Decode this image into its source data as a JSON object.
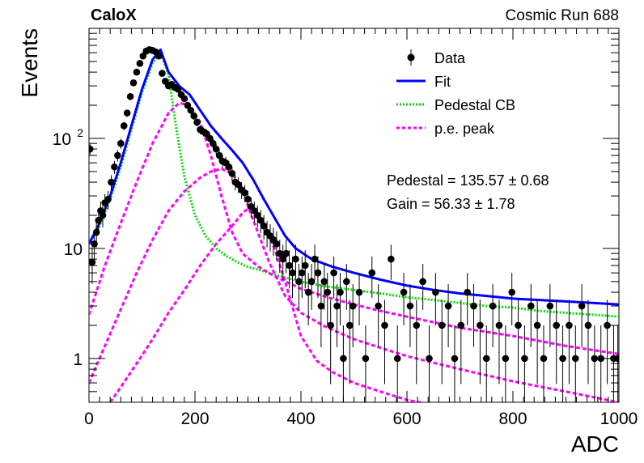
{
  "header": {
    "title_left": "CaloX",
    "title_right": "Cosmic Run 688"
  },
  "chart_data": {
    "type": "scatter",
    "xlabel": "ADC",
    "ylabel": "Events",
    "xlim": [
      0,
      1000
    ],
    "ylim": [
      0.4,
      1000
    ],
    "y_scale": "log",
    "x_ticks": [
      0,
      200,
      400,
      600,
      800,
      1000
    ],
    "x_tick_labels": [
      "0",
      "200",
      "400",
      "600",
      "800",
      "1000"
    ],
    "y_ticks": [
      1,
      10,
      100
    ],
    "y_tick_labels": [
      "1",
      "10",
      "10^2"
    ],
    "legend": {
      "position": "top-right",
      "entries": [
        {
          "label": "Data",
          "style": "marker",
          "color": "#000000"
        },
        {
          "label": "Fit",
          "style": "line",
          "color": "#0000ff"
        },
        {
          "label": "Pedestal CB",
          "style": "dotted",
          "color": "#00dd00"
        },
        {
          "label": "p.e. peak",
          "style": "dashed",
          "color": "#ff00ff"
        }
      ]
    },
    "annotations": [
      {
        "name": "Pedestal",
        "value": "135.57",
        "error": "0.68",
        "text": "Pedestal = 135.57 ± 0.68"
      },
      {
        "name": "Gain",
        "value": "56.33",
        "error": "1.78",
        "text": "Gain = 56.33 ± 1.78"
      }
    ],
    "series": [
      {
        "name": "Data",
        "kind": "points_with_errors",
        "color": "#000000",
        "x": [
          2,
          6,
          10,
          14,
          18,
          22,
          26,
          30,
          36,
          42,
          48,
          54,
          60,
          66,
          72,
          78,
          84,
          90,
          96,
          102,
          108,
          114,
          120,
          126,
          132,
          138,
          144,
          150,
          156,
          162,
          168,
          174,
          180,
          186,
          192,
          198,
          204,
          210,
          216,
          222,
          228,
          234,
          240,
          246,
          252,
          258,
          264,
          270,
          276,
          282,
          288,
          294,
          300,
          306,
          312,
          318,
          324,
          330,
          336,
          342,
          348,
          354,
          360,
          366,
          372,
          378,
          384,
          390,
          396,
          402,
          408,
          414,
          420,
          426,
          432,
          438,
          444,
          450,
          456,
          462,
          468,
          474,
          480,
          486,
          492,
          498,
          510,
          522,
          534,
          546,
          558,
          570,
          582,
          594,
          606,
          618,
          630,
          642,
          654,
          666,
          678,
          690,
          702,
          714,
          726,
          738,
          750,
          762,
          774,
          786,
          798,
          810,
          822,
          834,
          846,
          858,
          870,
          882,
          894,
          906,
          918,
          930,
          942,
          954,
          966,
          978,
          990,
          998
        ],
        "y": [
          80,
          7.5,
          11,
          14,
          18,
          22,
          20,
          26,
          28,
          40,
          55,
          70,
          90,
          130,
          170,
          240,
          320,
          400,
          480,
          560,
          620,
          640,
          630,
          610,
          560,
          390,
          330,
          300,
          310,
          290,
          280,
          250,
          230,
          200,
          180,
          160,
          140,
          120,
          115,
          110,
          100,
          90,
          80,
          70,
          62,
          60,
          55,
          48,
          40,
          38,
          34,
          32,
          28,
          24,
          22,
          20,
          18,
          16,
          14,
          13,
          12,
          11,
          9,
          8,
          9,
          7,
          6,
          8,
          5,
          6,
          7,
          4,
          5,
          8,
          6,
          3,
          5,
          4,
          2,
          6,
          3,
          4,
          1,
          5,
          2,
          3,
          4,
          1,
          6,
          3,
          2,
          8,
          1,
          4,
          3,
          2,
          5,
          1,
          4,
          2,
          3,
          1,
          2,
          4,
          3,
          2,
          1,
          3,
          2,
          1,
          4,
          2,
          1,
          3,
          2,
          1,
          3,
          2,
          1,
          2,
          1,
          3,
          2,
          1,
          1,
          2,
          1,
          1
        ]
      },
      {
        "name": "Fit",
        "kind": "line",
        "color": "#0000ff",
        "x": [
          0,
          20,
          40,
          60,
          80,
          100,
          120,
          135,
          150,
          170,
          190,
          210,
          230,
          250,
          270,
          290,
          310,
          330,
          350,
          370,
          390,
          420,
          460,
          500,
          550,
          600,
          650,
          700,
          750,
          800,
          850,
          900,
          950,
          1000
        ],
        "y": [
          11,
          17,
          30,
          60,
          130,
          280,
          520,
          640,
          400,
          300,
          250,
          180,
          130,
          100,
          78,
          60,
          42,
          28,
          19,
          13,
          10,
          8,
          6.8,
          6.0,
          5.2,
          4.6,
          4.2,
          3.9,
          3.7,
          3.5,
          3.4,
          3.3,
          3.2,
          3.1
        ]
      },
      {
        "name": "Pedestal CB",
        "kind": "line",
        "color": "#00dd00",
        "x": [
          0,
          20,
          40,
          60,
          80,
          100,
          120,
          135,
          150,
          165,
          180,
          200,
          220,
          240,
          260,
          280,
          300,
          330,
          360,
          400,
          450,
          500,
          550,
          600,
          650,
          700,
          750,
          800,
          850,
          900,
          950,
          1000
        ],
        "y": [
          11,
          16,
          28,
          55,
          120,
          260,
          480,
          600,
          380,
          120,
          45,
          20,
          13,
          10,
          8.5,
          7.5,
          6.8,
          6.2,
          5.6,
          5.0,
          4.5,
          4.2,
          3.9,
          3.6,
          3.4,
          3.2,
          3.0,
          2.9,
          2.7,
          2.6,
          2.5,
          2.4
        ]
      },
      {
        "name": "p.e. peak",
        "kind": "line",
        "color": "#ff00ff",
        "x": [
          0,
          30,
          60,
          90,
          120,
          150,
          170,
          190,
          210,
          230,
          250,
          270,
          290,
          320,
          350,
          400,
          450,
          500,
          550,
          600,
          700,
          800,
          900,
          1000
        ],
        "y": [
          2.5,
          7,
          17,
          40,
          90,
          170,
          210,
          200,
          140,
          70,
          30,
          14,
          9,
          6.8,
          5.6,
          4.3,
          3.6,
          3.1,
          2.7,
          2.4,
          1.9,
          1.6,
          1.3,
          1.1
        ]
      },
      {
        "name": "p.e. peak",
        "kind": "line",
        "color": "#ff00ff",
        "x": [
          0,
          30,
          60,
          90,
          120,
          150,
          180,
          210,
          230,
          250,
          270,
          290,
          310,
          340,
          370,
          400,
          450,
          500,
          550,
          600,
          700,
          800,
          900,
          1000
        ],
        "y": [
          0.6,
          1.3,
          2.8,
          6,
          12,
          22,
          33,
          44,
          50,
          53,
          48,
          33,
          18,
          7.5,
          3.7,
          2.6,
          1.9,
          1.5,
          1.25,
          1.05,
          0.8,
          0.62,
          0.5,
          0.4
        ]
      },
      {
        "name": "p.e. peak",
        "kind": "line",
        "color": "#ff00ff",
        "x": [
          40,
          60,
          90,
          120,
          150,
          180,
          210,
          240,
          270,
          290,
          300,
          310,
          330,
          350,
          370,
          400,
          430,
          460,
          500,
          550,
          600,
          650,
          700
        ],
        "y": [
          0.4,
          0.55,
          0.9,
          1.5,
          2.6,
          4.2,
          7,
          11,
          16,
          21,
          23,
          22,
          17,
          10,
          5.0,
          1.6,
          0.95,
          0.75,
          0.6,
          0.5,
          0.42,
          0.38,
          0.35
        ]
      }
    ]
  }
}
